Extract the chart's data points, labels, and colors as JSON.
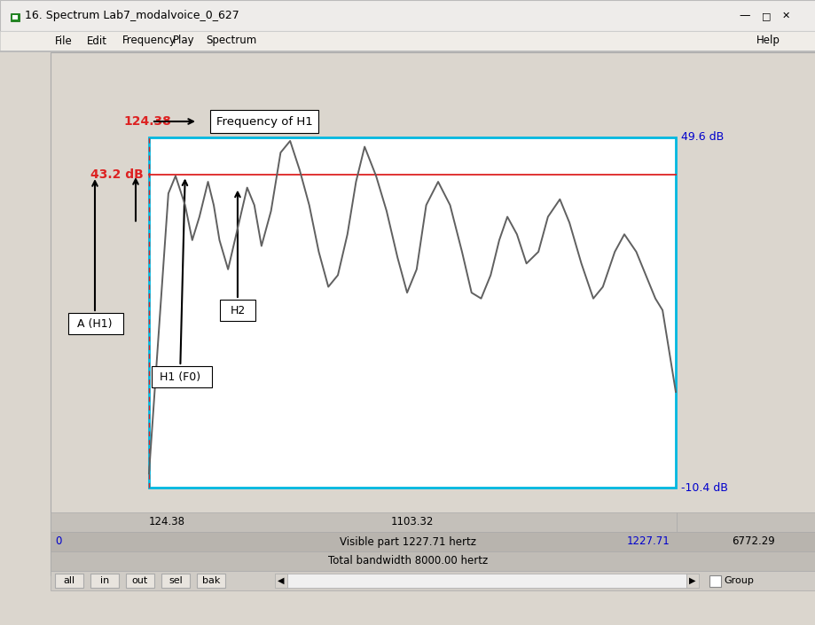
{
  "title": "16. Spectrum Lab7_modalvoice_0_627",
  "bg_color": "#dbd6ce",
  "plot_bg": "#ffffff",
  "cyan_border": "#00b8e0",
  "window_frame": "#f0ede8",
  "menu_bar_color": "#f0ede8",
  "x_min": 124.38,
  "x_max": 1227.71,
  "y_min": -10.4,
  "y_max": 49.6,
  "red_line_y": 43.2,
  "red_line_label": "43.2 dB",
  "vline_x": 124.38,
  "vline_label": "124.38",
  "top_label_y": "49.6 dB",
  "bottom_label_y": "-10.4 dB",
  "annotation_freq_h1": "Frequency of H1",
  "status_left": "124.38",
  "status_mid": "1103.32",
  "status_vis": "Visible part 1227.71 hertz",
  "status_right": "1227.71",
  "status_far_right": "6772.29",
  "status_total": "Total bandwidth 8000.00 hertz",
  "menu_items": [
    "File",
    "Edit",
    "Frequency",
    "Play",
    "Spectrum"
  ],
  "menu_help": "Help",
  "buttons": [
    "all",
    "in",
    "out",
    "sel",
    "bak"
  ],
  "line_color": "#606060",
  "line_width": 1.4,
  "spectrum_x": [
    124.38,
    148,
    165,
    180,
    200,
    215,
    230,
    248,
    260,
    272,
    290,
    310,
    330,
    345,
    360,
    380,
    400,
    420,
    440,
    460,
    480,
    500,
    520,
    540,
    558,
    576,
    600,
    622,
    645,
    665,
    685,
    705,
    730,
    755,
    780,
    800,
    820,
    840,
    858,
    875,
    895,
    915,
    940,
    960,
    985,
    1005,
    1030,
    1055,
    1075,
    1100,
    1120,
    1145,
    1165,
    1185,
    1200,
    1227.71
  ],
  "spectrum_y": [
    -8,
    20,
    40,
    43,
    38,
    32,
    36,
    42,
    38,
    32,
    27,
    34,
    41,
    38,
    31,
    37,
    47,
    49,
    44,
    38,
    30,
    24,
    26,
    33,
    42,
    48,
    43,
    37,
    29,
    23,
    27,
    38,
    42,
    38,
    30,
    23,
    22,
    26,
    32,
    36,
    33,
    28,
    30,
    36,
    39,
    35,
    28,
    22,
    24,
    30,
    33,
    30,
    26,
    22,
    20,
    6
  ]
}
